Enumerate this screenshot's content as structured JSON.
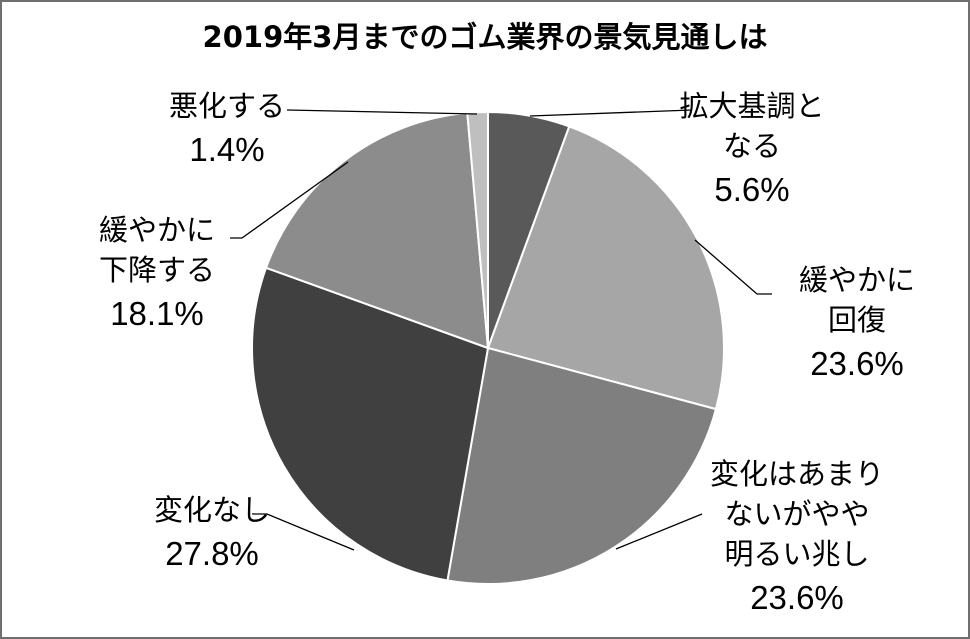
{
  "chart_data": {
    "type": "pie",
    "title": "2019年3月までのゴム業界の景気見通しは",
    "slices": [
      {
        "label_lines": [
          "拡大基調と",
          "なる"
        ],
        "value": 5.6,
        "value_text": "5.6%",
        "color": "#595959"
      },
      {
        "label_lines": [
          "緩やかに",
          "回復"
        ],
        "value": 23.6,
        "value_text": "23.6%",
        "color": "#a6a6a6"
      },
      {
        "label_lines": [
          "変化はあまり",
          "ないがやや",
          "明るい兆し"
        ],
        "value": 23.6,
        "value_text": "23.6%",
        "color": "#7f7f7f"
      },
      {
        "label_lines": [
          "変化なし"
        ],
        "value": 27.8,
        "value_text": "27.8%",
        "color": "#404040"
      },
      {
        "label_lines": [
          "緩やかに",
          "下降する"
        ],
        "value": 18.1,
        "value_text": "18.1%",
        "color": "#8c8c8c"
      },
      {
        "label_lines": [
          "悪化する"
        ],
        "value": 1.4,
        "value_text": "1.4%",
        "color": "#bfbfbf"
      }
    ],
    "start": "12 o'clock",
    "direction": "clockwise",
    "legend": "none",
    "data_labels": "outside with leader lines"
  }
}
